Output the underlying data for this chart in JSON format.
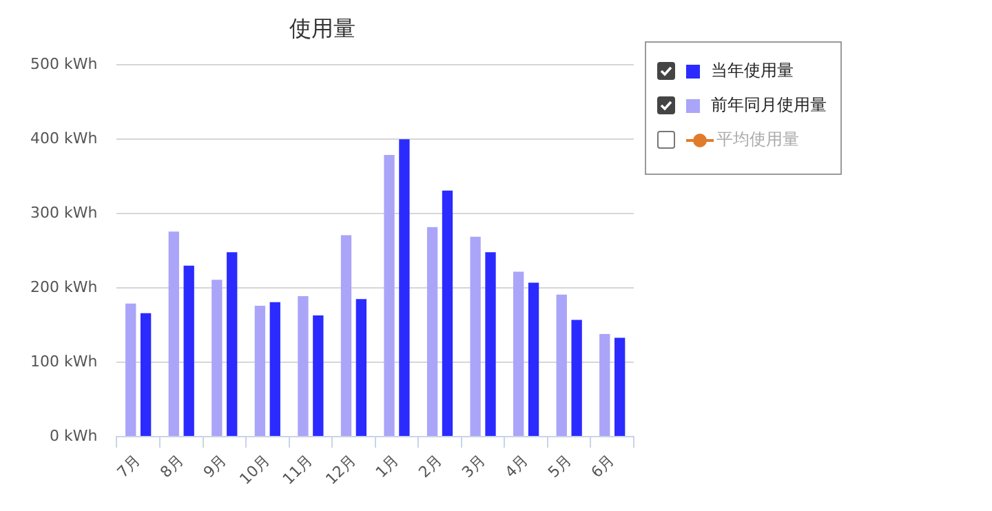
{
  "chart_data": {
    "type": "bar",
    "title": "使用量",
    "categories": [
      "7月",
      "8月",
      "9月",
      "10月",
      "11月",
      "12月",
      "1月",
      "2月",
      "3月",
      "4月",
      "5月",
      "6月"
    ],
    "series": [
      {
        "name": "当年使用量",
        "color": "#2b2bff",
        "values": [
          166,
          230,
          248,
          181,
          163,
          185,
          400,
          331,
          248,
          207,
          157,
          133
        ]
      },
      {
        "name": "前年同月使用量",
        "color": "#aaa5f8",
        "values": [
          179,
          276,
          211,
          176,
          189,
          271,
          379,
          282,
          269,
          222,
          191,
          138
        ]
      },
      {
        "name": "平均使用量",
        "type": "line",
        "color": "#e07b2a",
        "marker": "circle",
        "values": [
          null,
          null,
          null,
          null,
          null,
          null,
          null,
          null,
          null,
          null,
          null,
          null
        ]
      }
    ],
    "ylim": [
      0,
      500
    ],
    "yticks": [
      {
        "value": 0,
        "label": "0 kWh"
      },
      {
        "value": 100,
        "label": "100 kWh"
      },
      {
        "value": 200,
        "label": "200 kWh"
      },
      {
        "value": 300,
        "label": "300 kWh"
      },
      {
        "value": 400,
        "label": "400 kWh"
      },
      {
        "value": 500,
        "label": "500 kWh"
      }
    ],
    "grid": "y",
    "legend": "top right"
  }
}
